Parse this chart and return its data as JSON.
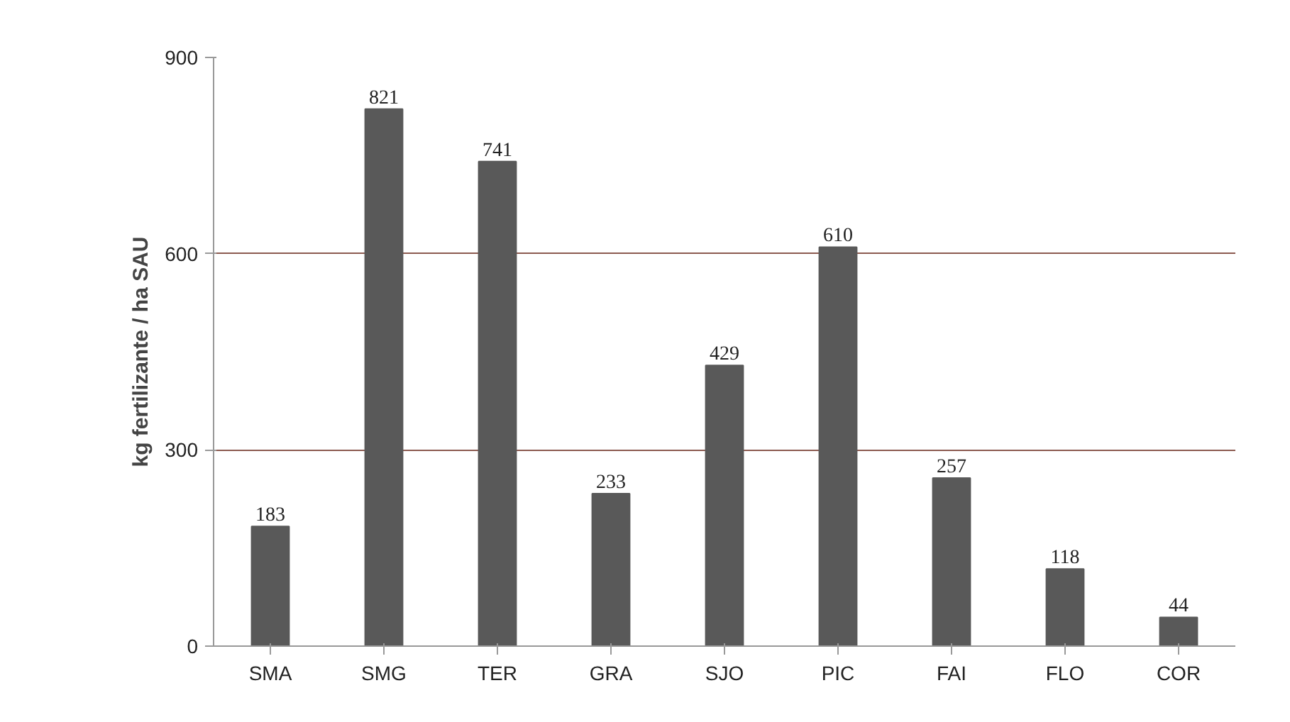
{
  "chart_data": {
    "type": "bar",
    "ylabel": "kg fertilizante / ha SAU",
    "categories": [
      "SMA",
      "SMG",
      "TER",
      "GRA",
      "SJO",
      "PIC",
      "FAI",
      "FLO",
      "COR"
    ],
    "values": [
      183,
      821,
      741,
      233,
      429,
      610,
      257,
      118,
      44
    ],
    "color": "#595959",
    "ylim": [
      0,
      900
    ],
    "yticks": [
      0,
      300,
      600,
      900
    ],
    "grid": "y",
    "data_labels": true
  }
}
